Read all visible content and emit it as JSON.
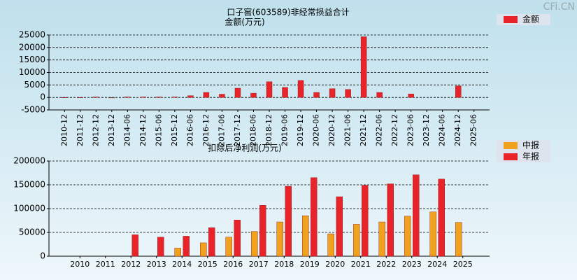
{
  "watermark": "CFi.CN",
  "chart_data": [
    {
      "type": "bar",
      "title": "口子窖(603589)非经常损益合计",
      "y_label": "金额(万元)",
      "categories": [
        "2010-12",
        "2011-12",
        "2012-12",
        "2013-12",
        "2014-06",
        "2014-12",
        "2015-06",
        "2015-12",
        "2016-06",
        "2016-12",
        "2017-06",
        "2017-12",
        "2018-06",
        "2018-12",
        "2019-06",
        "2019-12",
        "2020-06",
        "2020-12",
        "2021-06",
        "2021-12",
        "2022-06",
        "2022-12",
        "2023-06",
        "2023-12",
        "2024-06",
        "2024-12",
        "2025-06"
      ],
      "series": [
        {
          "name": "金额",
          "color": "#e8232a",
          "negative_color": "#2e9a3e",
          "values": [
            0,
            0,
            200,
            -200,
            200,
            200,
            200,
            200,
            700,
            2000,
            1300,
            3700,
            1700,
            6300,
            4000,
            6800,
            2000,
            3500,
            3200,
            24300,
            2000,
            null,
            1400,
            null,
            null,
            4600,
            null
          ]
        }
      ],
      "ylim": [
        -5000,
        25000
      ],
      "yticks": [
        -5000,
        0,
        5000,
        10000,
        15000,
        20000,
        25000
      ],
      "grid": true
    },
    {
      "type": "bar",
      "title": "扣除后净利润(万元)",
      "categories": [
        "2010",
        "2011",
        "2012",
        "2013",
        "2014",
        "2015",
        "2016",
        "2017",
        "2018",
        "2019",
        "2020",
        "2021",
        "2022",
        "2023",
        "2024",
        "2025"
      ],
      "series": [
        {
          "name": "中报",
          "color": "#f0a21e",
          "values": [
            null,
            null,
            null,
            null,
            17000,
            28000,
            40000,
            52000,
            72000,
            85000,
            47000,
            67000,
            72000,
            84000,
            93000,
            71000
          ]
        },
        {
          "name": "年报",
          "color": "#e8232a",
          "values": [
            null,
            null,
            45000,
            40000,
            42000,
            60000,
            76000,
            107000,
            147000,
            165000,
            125000,
            149000,
            152000,
            171000,
            162000,
            null
          ]
        }
      ],
      "ylim": [
        0,
        200000
      ],
      "yticks": [
        0,
        50000,
        100000,
        150000,
        200000
      ],
      "grid": true
    }
  ]
}
